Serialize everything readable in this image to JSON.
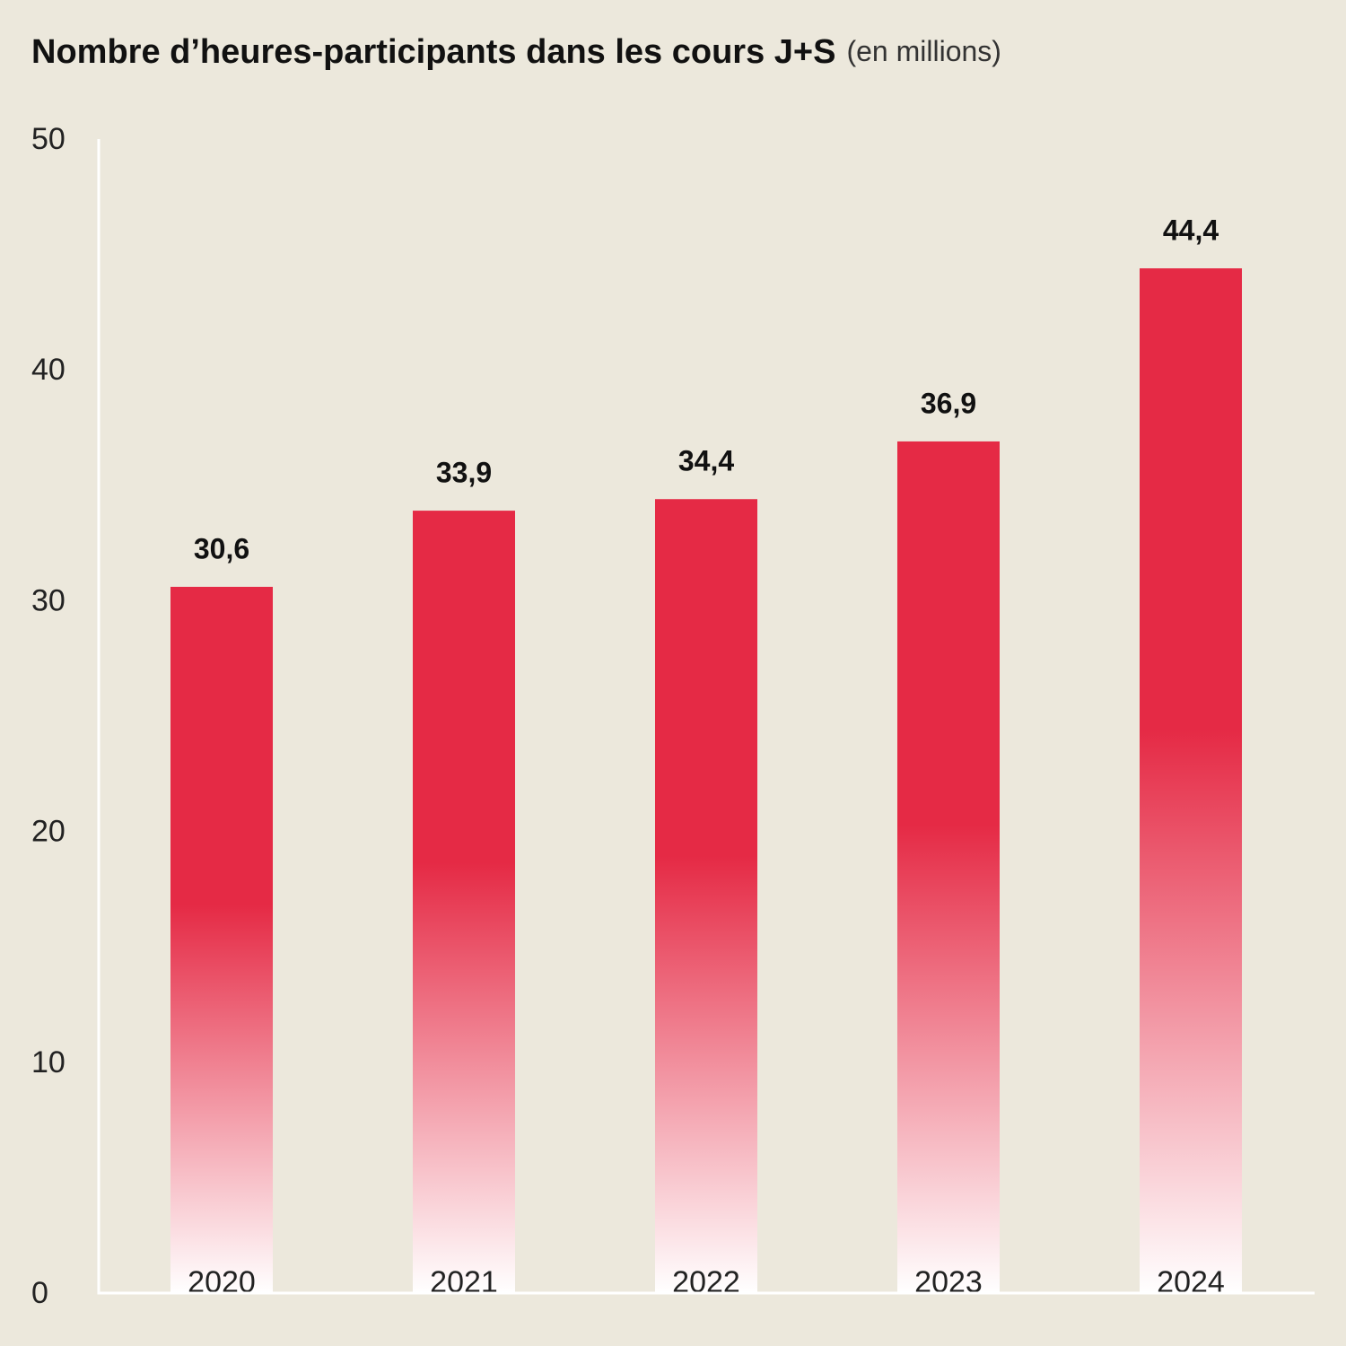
{
  "chart_data": {
    "type": "bar",
    "title": "Nombre d’heures-participants dans les cours J+S",
    "subtitle": "(en millions)",
    "categories": [
      "2020",
      "2021",
      "2022",
      "2023",
      "2024"
    ],
    "values": [
      30.6,
      33.9,
      34.4,
      36.9,
      44.4
    ],
    "value_labels": [
      "30,6",
      "33,9",
      "34,4",
      "36,9",
      "44,4"
    ],
    "color": "#e52a45",
    "ylim": [
      0,
      50
    ],
    "yticks": [
      0,
      10,
      20,
      30,
      40,
      50
    ],
    "grid": false
  }
}
